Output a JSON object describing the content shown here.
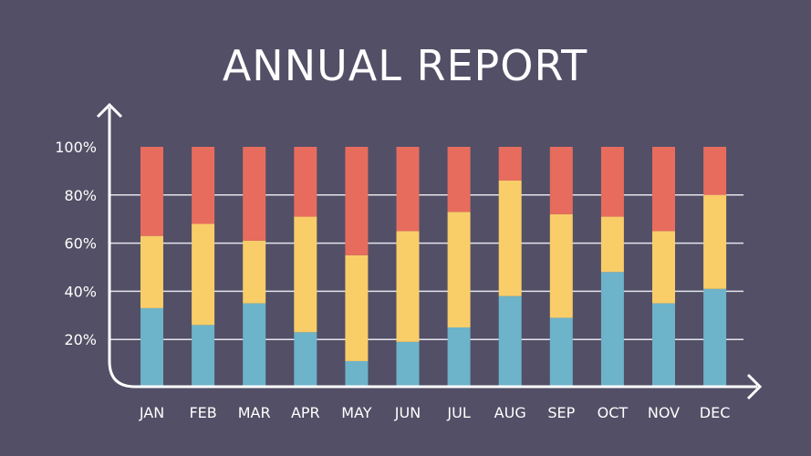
{
  "chart_data": {
    "type": "bar",
    "stacked": true,
    "title": "ANNUAL REPORT",
    "xlabel": "",
    "ylabel": "",
    "ylim": [
      0,
      100
    ],
    "yticks": [
      "20%",
      "40%",
      "60%",
      "80%",
      "100%"
    ],
    "grid": true,
    "categories": [
      "JAN",
      "FEB",
      "MAR",
      "APR",
      "MAY",
      "JUN",
      "JUL",
      "AUG",
      "SEP",
      "OCT",
      "NOV",
      "DEC"
    ],
    "series": [
      {
        "name": "blue",
        "color": "#6db3c9",
        "values": [
          33,
          26,
          35,
          23,
          11,
          19,
          25,
          38,
          29,
          48,
          35,
          41
        ]
      },
      {
        "name": "yellow",
        "color": "#f9cd68",
        "values": [
          30,
          42,
          26,
          48,
          44,
          46,
          48,
          48,
          43,
          23,
          30,
          39
        ]
      },
      {
        "name": "red",
        "color": "#e76c5e",
        "values": [
          37,
          32,
          39,
          29,
          45,
          35,
          27,
          14,
          28,
          29,
          35,
          20
        ]
      }
    ]
  }
}
